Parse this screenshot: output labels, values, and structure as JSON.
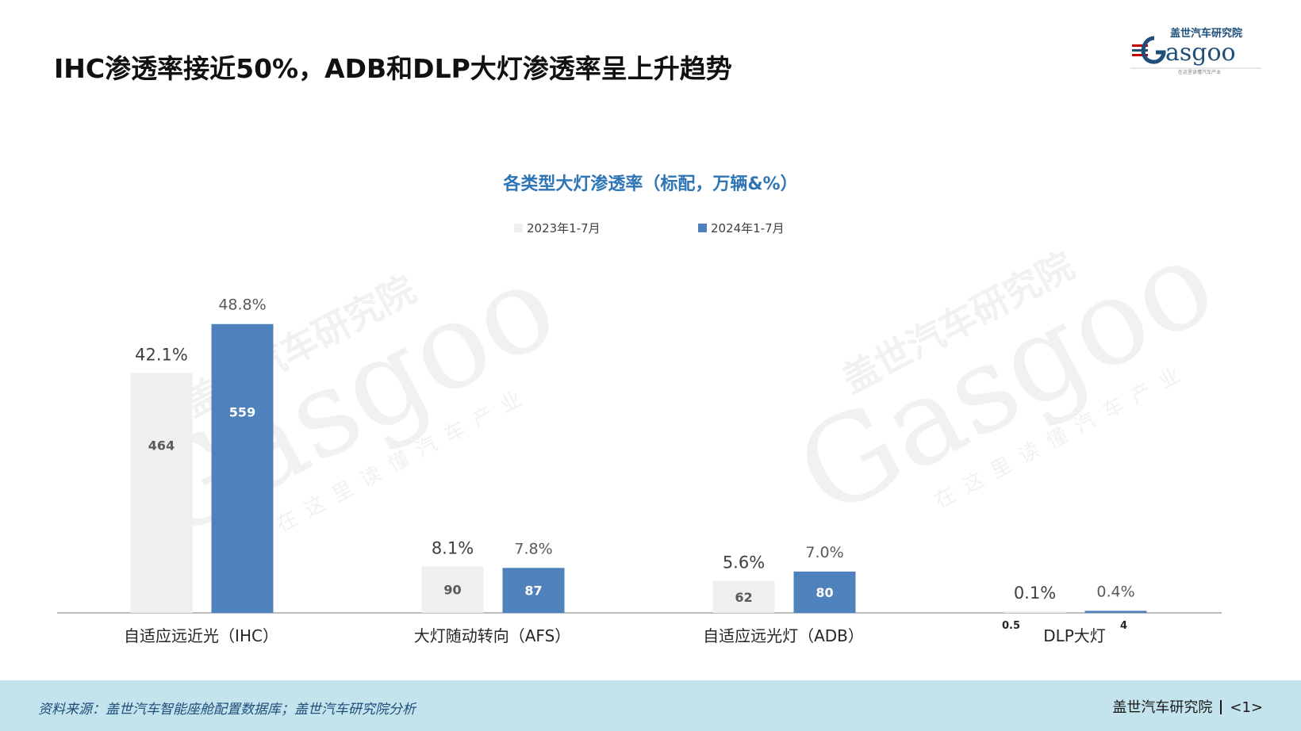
{
  "slide": {
    "title": "IHC渗透率接近50%，ADB和DLP大灯渗透率呈上升趋势"
  },
  "logo": {
    "cn": "盖世汽车研究院",
    "en": "Gasgoo",
    "tagline": "在这里读懂汽车产业"
  },
  "watermark": {
    "cn": "盖世汽车研究院",
    "en": "Gasgoo",
    "tagline": "在这里读懂汽车产业"
  },
  "colors": {
    "series_2023": "#efefef",
    "series_2024": "#4f81bd",
    "title_blue": "#2e75b6",
    "footer_bg": "#c3e3ed"
  },
  "chart_data": {
    "type": "bar",
    "title": "各类型大灯渗透率（标配，万辆&%）",
    "legend_position": "top",
    "grid": false,
    "categories": [
      "自适应远近光（IHC）",
      "大灯随动转向（AFS）",
      "自适应远光灯（ADB）",
      "DLP大灯"
    ],
    "series": [
      {
        "name": "2023年1-7月",
        "values": [
          464,
          90,
          62,
          0.5
        ],
        "volume_labels": [
          "464",
          "90",
          "62",
          "0.5"
        ],
        "rates": [
          "42.1%",
          "8.1%",
          "5.6%",
          "0.1%"
        ]
      },
      {
        "name": "2024年1-7月",
        "values": [
          559,
          87,
          80,
          4
        ],
        "volume_labels": [
          "559",
          "87",
          "80",
          "4"
        ],
        "rates": [
          "48.8%",
          "7.8%",
          "7.0%",
          "0.4%"
        ]
      }
    ],
    "ylim": [
      0,
      600
    ]
  },
  "footer": {
    "source": "资料来源：盖世汽车智能座舱配置数据库；盖世汽车研究院分析",
    "org": "盖世汽车研究院",
    "page": "<1>"
  }
}
